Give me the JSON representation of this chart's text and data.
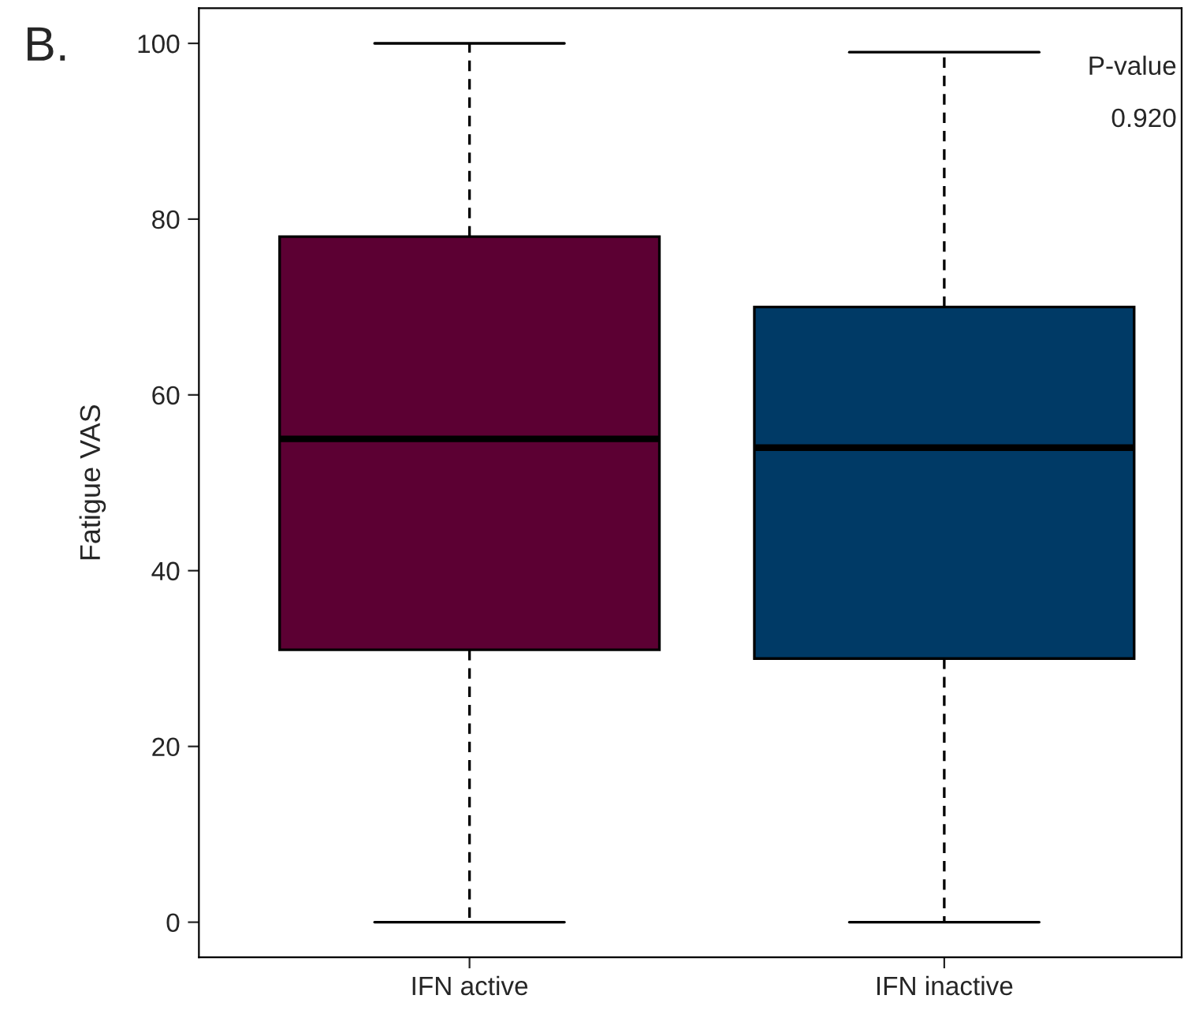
{
  "chart_data": {
    "type": "box",
    "ylabel": "Fatigue VAS",
    "categories": [
      "IFN active",
      "IFN inactive"
    ],
    "colors": [
      "#5c0033",
      "#003a66"
    ],
    "boxes": [
      {
        "low": 0,
        "q1": 31,
        "median": 55,
        "q3": 78,
        "high": 100
      },
      {
        "low": 0,
        "q1": 30,
        "median": 54,
        "q3": 70,
        "high": 99
      }
    ],
    "ylim": [
      -4,
      104
    ],
    "yticks": [
      0,
      20,
      40,
      60,
      80,
      100
    ],
    "annotations": [
      "B.",
      "P-value",
      "0.920"
    ],
    "grid": false,
    "legend": false
  }
}
